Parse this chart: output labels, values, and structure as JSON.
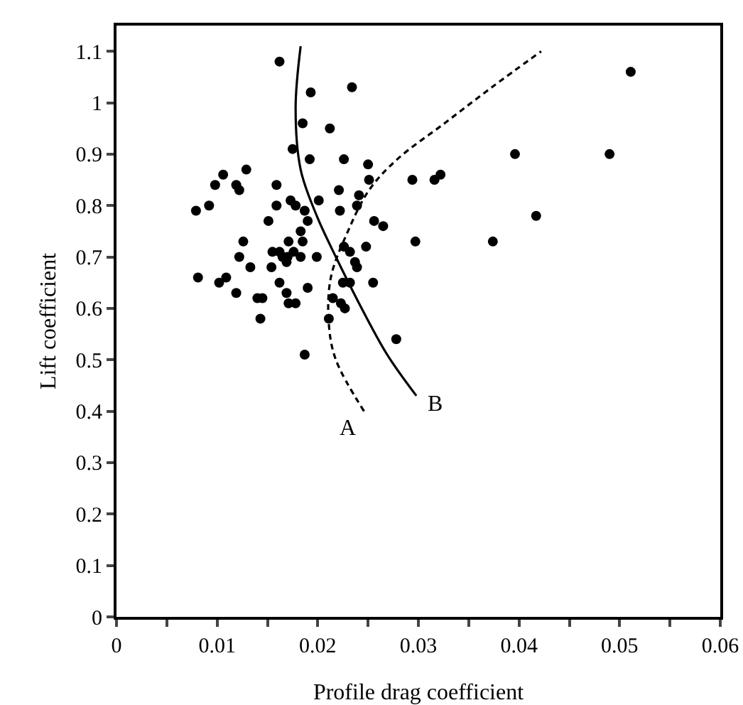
{
  "chart_data": {
    "type": "scatter",
    "xlabel": "Profile drag coefficient",
    "ylabel": "Lift coefficient",
    "xlim": [
      0,
      0.06
    ],
    "ylim": [
      0,
      1.15
    ],
    "xticks": [
      0,
      {
        "value": 0.005,
        "label": null
      },
      0.01,
      {
        "value": 0.015,
        "label": null
      },
      0.02,
      {
        "value": 0.025,
        "label": null
      },
      0.03,
      {
        "value": 0.035,
        "label": null
      },
      0.04,
      {
        "value": 0.045,
        "label": null
      },
      0.05,
      {
        "value": 0.055,
        "label": null
      },
      0.06
    ],
    "yticks": [
      0,
      0.1,
      0.2,
      0.3,
      0.4,
      0.5,
      0.6,
      0.7,
      0.8,
      0.9,
      1,
      1.1
    ],
    "grid": false,
    "legend": false,
    "series": [
      {
        "color": "#000000",
        "marker": "circle",
        "x": [
          0.0162,
          0.0193,
          0.0234,
          0.0185,
          0.0212,
          0.0175,
          0.0192,
          0.0226,
          0.025,
          0.0129,
          0.0106,
          0.0098,
          0.0119,
          0.0122,
          0.0159,
          0.0251,
          0.0221,
          0.0241,
          0.0092,
          0.0079,
          0.0159,
          0.0173,
          0.0178,
          0.0201,
          0.0239,
          0.0151,
          0.0222,
          0.0187,
          0.019,
          0.0256,
          0.0265,
          0.0183,
          0.0185,
          0.0126,
          0.0171,
          0.0176,
          0.0155,
          0.0162,
          0.0165,
          0.017,
          0.0183,
          0.0122,
          0.0226,
          0.0232,
          0.0248,
          0.0199,
          0.0237,
          0.0239,
          0.0154,
          0.0133,
          0.0169,
          0.0081,
          0.0102,
          0.0109,
          0.0119,
          0.0162,
          0.019,
          0.0225,
          0.0232,
          0.0255,
          0.0169,
          0.0178,
          0.0171,
          0.014,
          0.0145,
          0.0215,
          0.0223,
          0.0227,
          0.0143,
          0.0211,
          0.0278,
          0.0187,
          0.0294,
          0.0297,
          0.0511,
          0.0396,
          0.049,
          0.0316,
          0.0322,
          0.0417,
          0.0374
        ],
        "values": [
          1.08,
          1.02,
          1.03,
          0.96,
          0.95,
          0.91,
          0.89,
          0.89,
          0.88,
          0.87,
          0.86,
          0.84,
          0.84,
          0.83,
          0.84,
          0.85,
          0.83,
          0.82,
          0.8,
          0.79,
          0.8,
          0.81,
          0.8,
          0.81,
          0.8,
          0.77,
          0.79,
          0.79,
          0.77,
          0.77,
          0.76,
          0.75,
          0.73,
          0.73,
          0.73,
          0.71,
          0.71,
          0.71,
          0.7,
          0.7,
          0.7,
          0.7,
          0.72,
          0.71,
          0.72,
          0.7,
          0.69,
          0.68,
          0.68,
          0.68,
          0.69,
          0.66,
          0.65,
          0.66,
          0.63,
          0.65,
          0.64,
          0.65,
          0.65,
          0.65,
          0.63,
          0.61,
          0.61,
          0.62,
          0.62,
          0.62,
          0.61,
          0.6,
          0.58,
          0.58,
          0.54,
          0.51,
          0.85,
          0.73,
          1.06,
          0.9,
          0.9,
          0.85,
          0.86,
          0.78,
          0.73
        ]
      },
      {
        "type": "line",
        "name": "A",
        "color": "#000000",
        "line_style": "dashed",
        "x": [
          0.0246,
          0.0218,
          0.0211,
          0.0213,
          0.023,
          0.0251,
          0.0279,
          0.0326,
          0.0373,
          0.0422
        ],
        "values": [
          0.4,
          0.5,
          0.57,
          0.66,
          0.75,
          0.83,
          0.89,
          0.96,
          1.03,
          1.1
        ]
      },
      {
        "type": "line",
        "name": "B",
        "color": "#000000",
        "line_style": "solid",
        "x": [
          0.0183,
          0.0178,
          0.0183,
          0.0199,
          0.0218,
          0.0241,
          0.0269,
          0.0298
        ],
        "values": [
          1.11,
          0.99,
          0.87,
          0.78,
          0.7,
          0.61,
          0.51,
          0.43
        ]
      }
    ]
  }
}
